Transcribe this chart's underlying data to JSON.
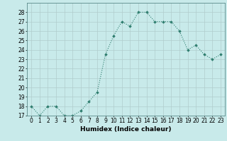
{
  "x": [
    0,
    1,
    2,
    3,
    4,
    5,
    6,
    7,
    8,
    9,
    10,
    11,
    12,
    13,
    14,
    15,
    16,
    17,
    18,
    19,
    20,
    21,
    22,
    23
  ],
  "y": [
    18,
    17,
    18,
    18,
    17,
    17,
    17.5,
    18.5,
    19.5,
    23.5,
    25.5,
    27,
    26.5,
    28,
    28,
    27,
    27,
    27,
    26,
    24,
    24.5,
    23.5,
    23,
    23.5
  ],
  "line_color": "#2e7d6e",
  "marker_color": "#2e7d6e",
  "bg_color": "#c8eaea",
  "grid_color": "#b0cccc",
  "xlabel": "Humidex (Indice chaleur)",
  "ylim": [
    17,
    29
  ],
  "xlim": [
    -0.5,
    23.5
  ],
  "yticks": [
    17,
    18,
    19,
    20,
    21,
    22,
    23,
    24,
    25,
    26,
    27,
    28
  ],
  "xticks": [
    0,
    1,
    2,
    3,
    4,
    5,
    6,
    7,
    8,
    9,
    10,
    11,
    12,
    13,
    14,
    15,
    16,
    17,
    18,
    19,
    20,
    21,
    22,
    23
  ],
  "xtick_labels": [
    "0",
    "1",
    "2",
    "3",
    "4",
    "5",
    "6",
    "7",
    "8",
    "9",
    "10",
    "11",
    "12",
    "13",
    "14",
    "15",
    "16",
    "17",
    "18",
    "19",
    "20",
    "21",
    "22",
    "23"
  ],
  "font_size_xlabel": 6.5,
  "font_size_ticks": 5.5
}
